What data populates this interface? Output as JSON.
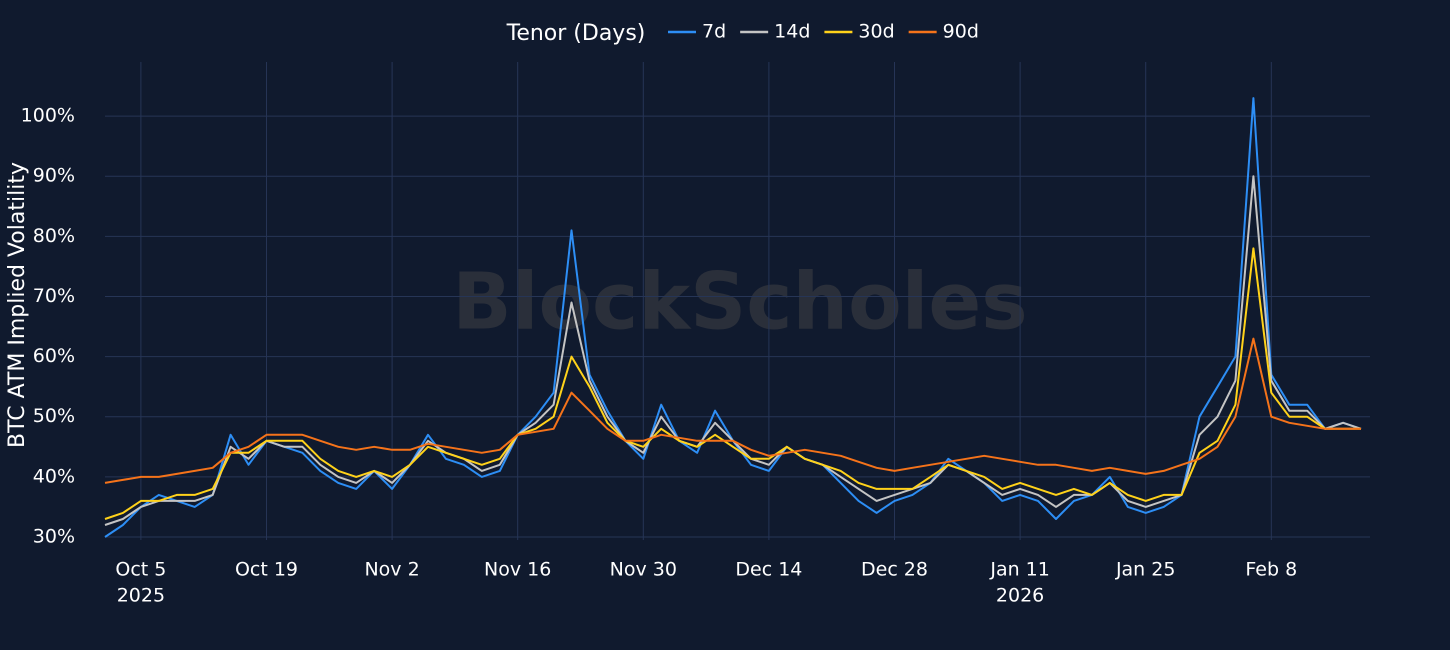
{
  "chart_data": {
    "type": "line",
    "watermark": "BlockScholes",
    "legend_title": "Tenor (Days)",
    "y_label": "BTC ATM Implied Volatility",
    "xlim": [
      "2025-10-01",
      "2026-02-19"
    ],
    "xticks": [
      {
        "value": "2025-10-05",
        "label": "Oct 5"
      },
      {
        "value": "2025-10-19",
        "label": "Oct 19"
      },
      {
        "value": "2025-11-02",
        "label": "Nov 2"
      },
      {
        "value": "2025-11-16",
        "label": "Nov 16"
      },
      {
        "value": "2025-11-30",
        "label": "Nov 30"
      },
      {
        "value": "2025-12-14",
        "label": "Dec 14"
      },
      {
        "value": "2025-12-28",
        "label": "Dec 28"
      },
      {
        "value": "2026-01-11",
        "label": "Jan 11"
      },
      {
        "value": "2026-01-25",
        "label": "Jan 25"
      },
      {
        "value": "2026-02-08",
        "label": "Feb 8"
      }
    ],
    "year_labels": [
      {
        "value": "2025-10-05",
        "label": "2025"
      },
      {
        "value": "2026-01-11",
        "label": "2026"
      }
    ],
    "ylim": [
      29.5,
      109
    ],
    "yticks": [
      {
        "value": 30,
        "label": "30%"
      },
      {
        "value": 40,
        "label": "40%"
      },
      {
        "value": 50,
        "label": "50%"
      },
      {
        "value": 60,
        "label": "60%"
      },
      {
        "value": 70,
        "label": "70%"
      },
      {
        "value": 80,
        "label": "80%"
      },
      {
        "value": 90,
        "label": "90%"
      },
      {
        "value": 100,
        "label": "100%"
      }
    ],
    "grid": true,
    "x": [
      "2025-10-01",
      "2025-10-03",
      "2025-10-05",
      "2025-10-07",
      "2025-10-09",
      "2025-10-11",
      "2025-10-13",
      "2025-10-15",
      "2025-10-17",
      "2025-10-19",
      "2025-10-21",
      "2025-10-23",
      "2025-10-25",
      "2025-10-27",
      "2025-10-29",
      "2025-10-31",
      "2025-11-02",
      "2025-11-04",
      "2025-11-06",
      "2025-11-08",
      "2025-11-10",
      "2025-11-12",
      "2025-11-14",
      "2025-11-16",
      "2025-11-18",
      "2025-11-20",
      "2025-11-22",
      "2025-11-24",
      "2025-11-26",
      "2025-11-28",
      "2025-11-30",
      "2025-12-02",
      "2025-12-04",
      "2025-12-06",
      "2025-12-08",
      "2025-12-10",
      "2025-12-12",
      "2025-12-14",
      "2025-12-16",
      "2025-12-18",
      "2025-12-20",
      "2025-12-22",
      "2025-12-24",
      "2025-12-26",
      "2025-12-28",
      "2025-12-30",
      "2026-01-01",
      "2026-01-03",
      "2026-01-05",
      "2026-01-07",
      "2026-01-09",
      "2026-01-11",
      "2026-01-13",
      "2026-01-15",
      "2026-01-17",
      "2026-01-19",
      "2026-01-21",
      "2026-01-23",
      "2026-01-25",
      "2026-01-27",
      "2026-01-29",
      "2026-01-31",
      "2026-02-02",
      "2026-02-04",
      "2026-02-06",
      "2026-02-08",
      "2026-02-10",
      "2026-02-12",
      "2026-02-14",
      "2026-02-16",
      "2026-02-18"
    ],
    "series": [
      {
        "name": "7d",
        "color": "#2d8ef5",
        "values": [
          30,
          32,
          35,
          37,
          36,
          35,
          37,
          47,
          42,
          46,
          45,
          44,
          41,
          39,
          38,
          41,
          38,
          42,
          47,
          43,
          42,
          40,
          41,
          47,
          50,
          54,
          81,
          57,
          51,
          46,
          43,
          52,
          46,
          44,
          51,
          46,
          42,
          41,
          45,
          43,
          42,
          39,
          36,
          34,
          36,
          37,
          39,
          43,
          41,
          39,
          36,
          37,
          36,
          33,
          36,
          37,
          40,
          35,
          34,
          35,
          37,
          50,
          55,
          60,
          103,
          57,
          52,
          52,
          48,
          49,
          48
        ]
      },
      {
        "name": "14d",
        "color": "#c4c4c4",
        "values": [
          32,
          33,
          35,
          36,
          36,
          36,
          37,
          45,
          43,
          46,
          45,
          45,
          42,
          40,
          39,
          41,
          39,
          42,
          46,
          44,
          43,
          41,
          42,
          47,
          49,
          52,
          69,
          56,
          50,
          46,
          44,
          50,
          46,
          45,
          49,
          46,
          43,
          42,
          45,
          43,
          42,
          40,
          38,
          36,
          37,
          38,
          39,
          42,
          41,
          39,
          37,
          38,
          37,
          35,
          37,
          37,
          39,
          36,
          35,
          36,
          37,
          47,
          50,
          56,
          90,
          56,
          51,
          51,
          48,
          49,
          48
        ]
      },
      {
        "name": "30d",
        "color": "#ffd21a",
        "values": [
          33,
          34,
          36,
          36,
          37,
          37,
          38,
          44,
          44,
          46,
          46,
          46,
          43,
          41,
          40,
          41,
          40,
          42,
          45,
          44,
          43,
          42,
          43,
          47,
          48,
          50,
          60,
          55,
          49,
          46,
          45,
          48,
          46,
          45,
          47,
          45,
          43,
          43,
          45,
          43,
          42,
          41,
          39,
          38,
          38,
          38,
          40,
          42,
          41,
          40,
          38,
          39,
          38,
          37,
          38,
          37,
          39,
          37,
          36,
          37,
          37,
          44,
          46,
          52,
          78,
          54,
          50,
          50,
          48,
          48,
          48
        ]
      },
      {
        "name": "90d",
        "color": "#f5731a",
        "values": [
          39,
          39.5,
          40,
          40,
          40.5,
          41,
          41.5,
          44,
          45,
          47,
          47,
          47,
          46,
          45,
          44.5,
          45,
          44.5,
          44.5,
          45.5,
          45,
          44.5,
          44,
          44.5,
          47,
          47.5,
          48,
          54,
          51,
          48,
          46,
          46,
          47,
          46.5,
          46,
          46,
          46,
          44.5,
          43.5,
          44,
          44.5,
          44,
          43.5,
          42.5,
          41.5,
          41,
          41.5,
          42,
          42.5,
          43,
          43.5,
          43,
          42.5,
          42,
          42,
          41.5,
          41,
          41.5,
          41,
          40.5,
          41,
          42,
          43,
          45,
          50,
          63,
          50,
          49,
          48.5,
          48,
          48,
          48
        ]
      }
    ]
  }
}
